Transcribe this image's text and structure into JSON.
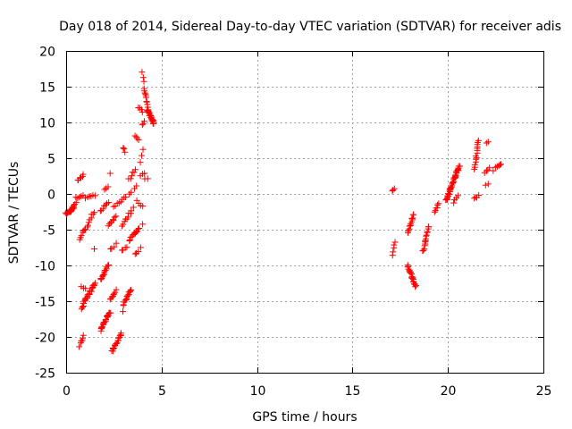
{
  "chart_data": {
    "type": "scatter",
    "title": "Day 018 of 2014, Sidereal Day-to-day VTEC variation (SDTVAR) for receiver adis",
    "xlabel": "GPS time / hours",
    "ylabel": "SDTVAR / TECUs",
    "xlim": [
      0,
      25
    ],
    "ylim": [
      -25,
      20
    ],
    "xticks": [
      0,
      5,
      10,
      15,
      20,
      25
    ],
    "yticks": [
      -25,
      -20,
      -15,
      -10,
      -5,
      0,
      5,
      10,
      15,
      20
    ],
    "grid": true,
    "marker": "+",
    "color": "#ff0000",
    "segments": [
      {
        "x": [
          0.0,
          0.4
        ],
        "y": [
          -2.8,
          -2.0
        ],
        "n": 14
      },
      {
        "x": [
          0.3,
          0.5
        ],
        "y": [
          -2.0,
          -1.2
        ],
        "n": 6
      },
      {
        "x": [
          0.6,
          0.9
        ],
        "y": [
          1.8,
          2.8
        ],
        "n": 6
      },
      {
        "x": [
          0.5,
          0.9
        ],
        "y": [
          -0.6,
          -0.2
        ],
        "n": 5
      },
      {
        "x": [
          1.0,
          1.5
        ],
        "y": [
          -0.5,
          -0.2
        ],
        "n": 6
      },
      {
        "x": [
          0.7,
          1.3
        ],
        "y": [
          -6.3,
          -3.5
        ],
        "n": 12
      },
      {
        "x": [
          1.3,
          1.5
        ],
        "y": [
          -3.0,
          -2.5
        ],
        "n": 3
      },
      {
        "x": [
          1.5,
          1.5
        ],
        "y": [
          -7.5,
          -7.5
        ],
        "n": 1
      },
      {
        "x": [
          0.8,
          1.5
        ],
        "y": [
          -16.0,
          -12.5
        ],
        "n": 26
      },
      {
        "x": [
          0.8,
          1.0
        ],
        "y": [
          -13.0,
          -13.2
        ],
        "n": 3
      },
      {
        "x": [
          0.7,
          0.9
        ],
        "y": [
          -21.3,
          -19.8
        ],
        "n": 6
      },
      {
        "x": [
          1.8,
          2.2
        ],
        "y": [
          -12.0,
          -10.0
        ],
        "n": 14
      },
      {
        "x": [
          1.8,
          2.3
        ],
        "y": [
          -19.0,
          -16.5
        ],
        "n": 22
      },
      {
        "x": [
          1.8,
          2.2
        ],
        "y": [
          -2.3,
          -1.3
        ],
        "n": 7
      },
      {
        "x": [
          2.0,
          2.2
        ],
        "y": [
          0.6,
          1.0
        ],
        "n": 3
      },
      {
        "x": [
          2.3,
          2.3
        ],
        "y": [
          2.8,
          2.8
        ],
        "n": 1
      },
      {
        "x": [
          2.2,
          2.6
        ],
        "y": [
          -4.5,
          -3.2
        ],
        "n": 8
      },
      {
        "x": [
          2.3,
          2.6
        ],
        "y": [
          -7.8,
          -7.0
        ],
        "n": 4
      },
      {
        "x": [
          2.3,
          2.6
        ],
        "y": [
          -14.8,
          -13.5
        ],
        "n": 8
      },
      {
        "x": [
          2.4,
          2.9
        ],
        "y": [
          -22.0,
          -19.5
        ],
        "n": 18
      },
      {
        "x": [
          2.5,
          3.1
        ],
        "y": [
          -1.8,
          -0.3
        ],
        "n": 8
      },
      {
        "x": [
          2.9,
          3.5
        ],
        "y": [
          -4.5,
          -2.0
        ],
        "n": 10
      },
      {
        "x": [
          2.9,
          3.2
        ],
        "y": [
          -7.8,
          -7.4
        ],
        "n": 4
      },
      {
        "x": [
          3.0,
          3.4
        ],
        "y": [
          -15.5,
          -13.3
        ],
        "n": 14
      },
      {
        "x": [
          3.0,
          3.0
        ],
        "y": [
          -16.3,
          -16.3
        ],
        "n": 1
      },
      {
        "x": [
          3.0,
          3.1
        ],
        "y": [
          6.5,
          6.0
        ],
        "n": 3
      },
      {
        "x": [
          3.3,
          3.6
        ],
        "y": [
          2.0,
          3.5
        ],
        "n": 6
      },
      {
        "x": [
          3.3,
          3.7
        ],
        "y": [
          0.0,
          1.0
        ],
        "n": 4
      },
      {
        "x": [
          3.3,
          3.8
        ],
        "y": [
          -6.5,
          -4.8
        ],
        "n": 12
      },
      {
        "x": [
          3.6,
          3.9
        ],
        "y": [
          -8.5,
          -7.6
        ],
        "n": 4
      },
      {
        "x": [
          3.6,
          3.8
        ],
        "y": [
          8.0,
          7.6
        ],
        "n": 4
      },
      {
        "x": [
          3.7,
          4.0
        ],
        "y": [
          -1.0,
          -1.8
        ],
        "n": 4
      },
      {
        "x": [
          3.9,
          4.0
        ],
        "y": [
          4.5,
          6.2
        ],
        "n": 3
      },
      {
        "x": [
          3.9,
          4.1
        ],
        "y": [
          2.5,
          3.0
        ],
        "n": 3
      },
      {
        "x": [
          3.8,
          4.0
        ],
        "y": [
          12.2,
          11.5
        ],
        "n": 4
      },
      {
        "x": [
          4.0,
          4.1
        ],
        "y": [
          9.8,
          10.2
        ],
        "n": 3
      },
      {
        "x": [
          4.0,
          4.1
        ],
        "y": [
          17.0,
          15.6
        ],
        "n": 3
      },
      {
        "x": [
          4.1,
          4.25
        ],
        "y": [
          14.8,
          12.2
        ],
        "n": 10
      },
      {
        "x": [
          4.25,
          4.6
        ],
        "y": [
          11.8,
          9.8
        ],
        "n": 24
      },
      {
        "x": [
          4.1,
          4.3
        ],
        "y": [
          2.0,
          2.2
        ],
        "n": 2
      },
      {
        "x": [
          4.0,
          4.0
        ],
        "y": [
          -4.2,
          -4.2
        ],
        "n": 1
      },
      {
        "x": [
          17.1,
          17.2
        ],
        "y": [
          0.5,
          0.7
        ],
        "n": 3
      },
      {
        "x": [
          17.1,
          17.2
        ],
        "y": [
          -8.6,
          -6.8
        ],
        "n": 5
      },
      {
        "x": [
          17.9,
          18.3
        ],
        "y": [
          -10.0,
          -13.0
        ],
        "n": 22
      },
      {
        "x": [
          17.9,
          18.2
        ],
        "y": [
          -5.5,
          -2.8
        ],
        "n": 14
      },
      {
        "x": [
          18.7,
          19.0
        ],
        "y": [
          -8.0,
          -4.5
        ],
        "n": 16
      },
      {
        "x": [
          19.3,
          19.5
        ],
        "y": [
          -2.5,
          -1.5
        ],
        "n": 6
      },
      {
        "x": [
          19.9,
          20.6
        ],
        "y": [
          -1.0,
          4.0
        ],
        "n": 45
      },
      {
        "x": [
          20.3,
          20.5
        ],
        "y": [
          -1.3,
          -0.3
        ],
        "n": 4
      },
      {
        "x": [
          21.4,
          21.6
        ],
        "y": [
          3.5,
          7.5
        ],
        "n": 14
      },
      {
        "x": [
          21.4,
          21.6
        ],
        "y": [
          -0.6,
          -0.2
        ],
        "n": 4
      },
      {
        "x": [
          22.0,
          22.1
        ],
        "y": [
          7.0,
          7.2
        ],
        "n": 2
      },
      {
        "x": [
          21.9,
          22.2
        ],
        "y": [
          3.0,
          3.8
        ],
        "n": 4
      },
      {
        "x": [
          22.0,
          22.1
        ],
        "y": [
          1.2,
          1.5
        ],
        "n": 2
      },
      {
        "x": [
          22.4,
          22.8
        ],
        "y": [
          3.4,
          4.2
        ],
        "n": 6
      }
    ]
  }
}
